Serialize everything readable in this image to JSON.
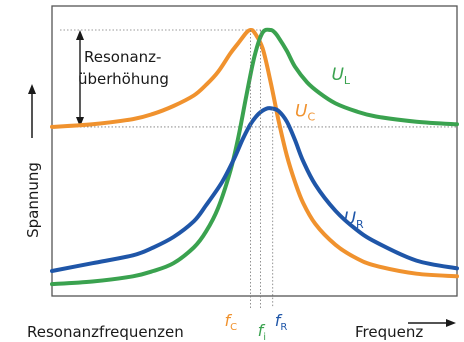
{
  "chart_data": {
    "type": "line",
    "title": "",
    "xlabel": "Frequenz",
    "ylabel": "Spannung",
    "x_note": "Resonanzfrequenzen",
    "xlim": [
      0,
      100
    ],
    "ylim": [
      0,
      100
    ],
    "grid": false,
    "annotation": {
      "line1": "Resonanz-",
      "line2": "überhöhung",
      "from_y": 63,
      "to_y": 100
    },
    "resonance_markers": [
      {
        "var": "f",
        "sub": "C",
        "x": 49,
        "color": "#f0922e"
      },
      {
        "var": "f",
        "sub": "i",
        "x": 51.5,
        "color": "#3aa24f"
      },
      {
        "var": "f",
        "sub": "R",
        "x": 54.5,
        "color": "#1f56a8"
      }
    ],
    "series": [
      {
        "var": "U",
        "sub": "C",
        "color": "#f0922e",
        "x": [
          0,
          10,
          20,
          25,
          30,
          35,
          38,
          41,
          44,
          46,
          48,
          49,
          50,
          52,
          54,
          56,
          58,
          60,
          62,
          65,
          70,
          75,
          80,
          90,
          100
        ],
        "y": [
          63,
          64,
          66,
          68,
          71,
          75,
          79,
          84,
          91,
          95,
          99,
          100,
          99,
          93,
          80,
          65,
          52,
          42,
          34,
          26,
          18,
          13,
          10,
          7,
          6
        ],
        "label_at": [
          60,
          67
        ]
      },
      {
        "var": "U",
        "sub": "L",
        "color": "#3aa24f",
        "x": [
          0,
          10,
          20,
          25,
          30,
          35,
          38,
          41,
          44,
          46,
          48,
          50,
          52,
          54,
          55,
          56,
          58,
          60,
          63,
          66,
          70,
          75,
          80,
          90,
          100
        ],
        "y": [
          3,
          4,
          6,
          8,
          11,
          17,
          23,
          32,
          46,
          59,
          75,
          90,
          99,
          100,
          99,
          97,
          92,
          86,
          80,
          76,
          72,
          69,
          67,
          65,
          64
        ],
        "label_at": [
          69,
          81
        ]
      },
      {
        "var": "U",
        "sub": "R",
        "color": "#1f56a8",
        "x": [
          0,
          10,
          20,
          25,
          30,
          35,
          38,
          42,
          45,
          47,
          49,
          51,
          53,
          54.5,
          56,
          58,
          60,
          62,
          65,
          70,
          75,
          80,
          90,
          100
        ],
        "y": [
          8,
          11,
          14,
          17,
          21,
          27,
          33,
          42,
          51,
          58,
          64,
          68,
          70,
          70,
          69,
          65,
          58,
          50,
          41,
          31,
          24,
          19,
          12,
          9
        ],
        "label_at": [
          72,
          26
        ]
      }
    ]
  }
}
